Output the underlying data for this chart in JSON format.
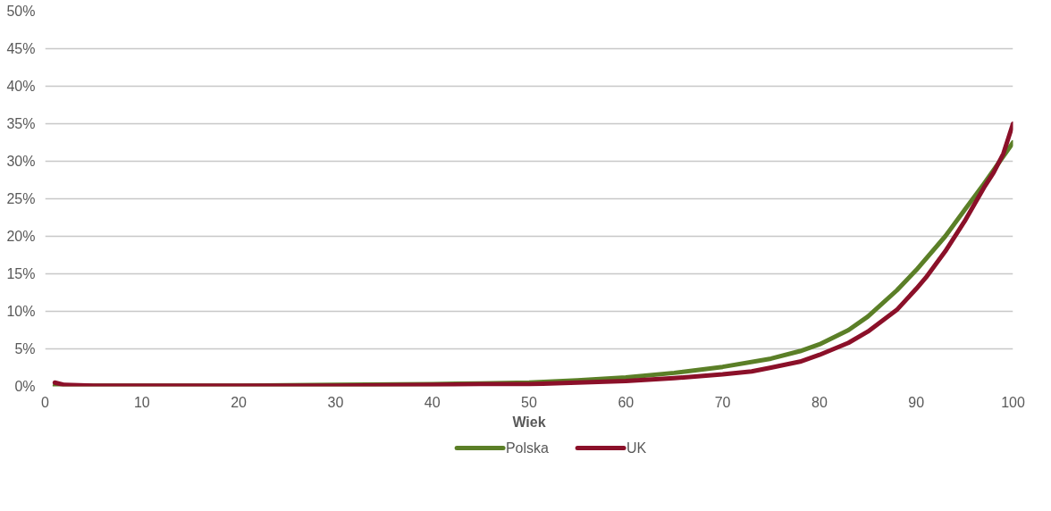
{
  "chart_data": {
    "type": "line",
    "xlabel": "Wiek",
    "xlim": [
      0,
      100
    ],
    "xticks": [
      0,
      10,
      20,
      30,
      40,
      50,
      60,
      70,
      80,
      90,
      100
    ],
    "ylim": [
      0,
      50
    ],
    "yticks": [
      {
        "value": 0,
        "label": "0%"
      },
      {
        "value": 5,
        "label": "5%"
      },
      {
        "value": 10,
        "label": "10%"
      },
      {
        "value": 15,
        "label": "15%"
      },
      {
        "value": 20,
        "label": "20%"
      },
      {
        "value": 25,
        "label": "25%"
      },
      {
        "value": 30,
        "label": "30%"
      },
      {
        "value": 35,
        "label": "35%"
      },
      {
        "value": 40,
        "label": "40%"
      },
      {
        "value": 45,
        "label": "45%"
      },
      {
        "value": 50,
        "label": "50%"
      }
    ],
    "grid": "y",
    "legend": "bottom",
    "line_style": "solid",
    "marker": "none",
    "series": [
      {
        "name": "Polska",
        "color": "#5b7f27",
        "x": [
          1,
          5,
          10,
          20,
          30,
          40,
          45,
          50,
          55,
          60,
          65,
          70,
          75,
          78,
          80,
          83,
          85,
          88,
          90,
          93,
          95,
          97,
          100
        ],
        "values": [
          0.1,
          0.1,
          0.1,
          0.1,
          0.2,
          0.3,
          0.4,
          0.5,
          0.8,
          1.2,
          1.8,
          2.6,
          3.7,
          4.7,
          5.6,
          7.5,
          9.3,
          12.8,
          15.5,
          20,
          23.5,
          27,
          32.5
        ]
      },
      {
        "name": "UK",
        "color": "#8b1029",
        "x": [
          1,
          2,
          5,
          10,
          20,
          30,
          40,
          45,
          50,
          55,
          60,
          65,
          70,
          73,
          75,
          78,
          80,
          83,
          85,
          88,
          90,
          91,
          93,
          95,
          97,
          98,
          99,
          100
        ],
        "values": [
          0.5,
          0.2,
          0.1,
          0.1,
          0.1,
          0.1,
          0.2,
          0.3,
          0.3,
          0.5,
          0.7,
          1.1,
          1.6,
          2,
          2.5,
          3.3,
          4.2,
          5.8,
          7.3,
          10.2,
          13,
          14.5,
          18,
          22,
          26.5,
          28.5,
          31,
          35
        ]
      }
    ]
  }
}
